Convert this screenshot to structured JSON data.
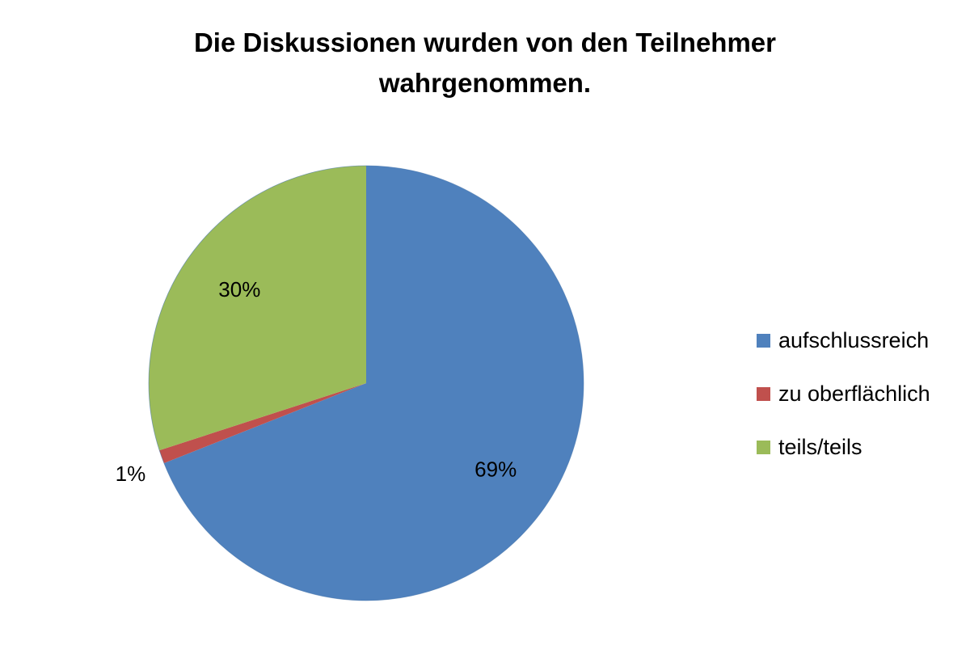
{
  "chart_data": {
    "type": "pie",
    "title": "Die Diskussionen wurden von den Teilnehmer wahrgenommen.",
    "title_lines": [
      "Die Diskussionen wurden von den Teilnehmer",
      "wahrgenommen."
    ],
    "categories": [
      "aufschlussreich",
      "zu oberflächlich",
      "teils/teils"
    ],
    "values": [
      69,
      1,
      30
    ],
    "labels": [
      "69%",
      "1%",
      "30%"
    ],
    "colors": [
      "#4F81BD",
      "#C0504D",
      "#9BBB59"
    ],
    "legend_position": "right"
  }
}
